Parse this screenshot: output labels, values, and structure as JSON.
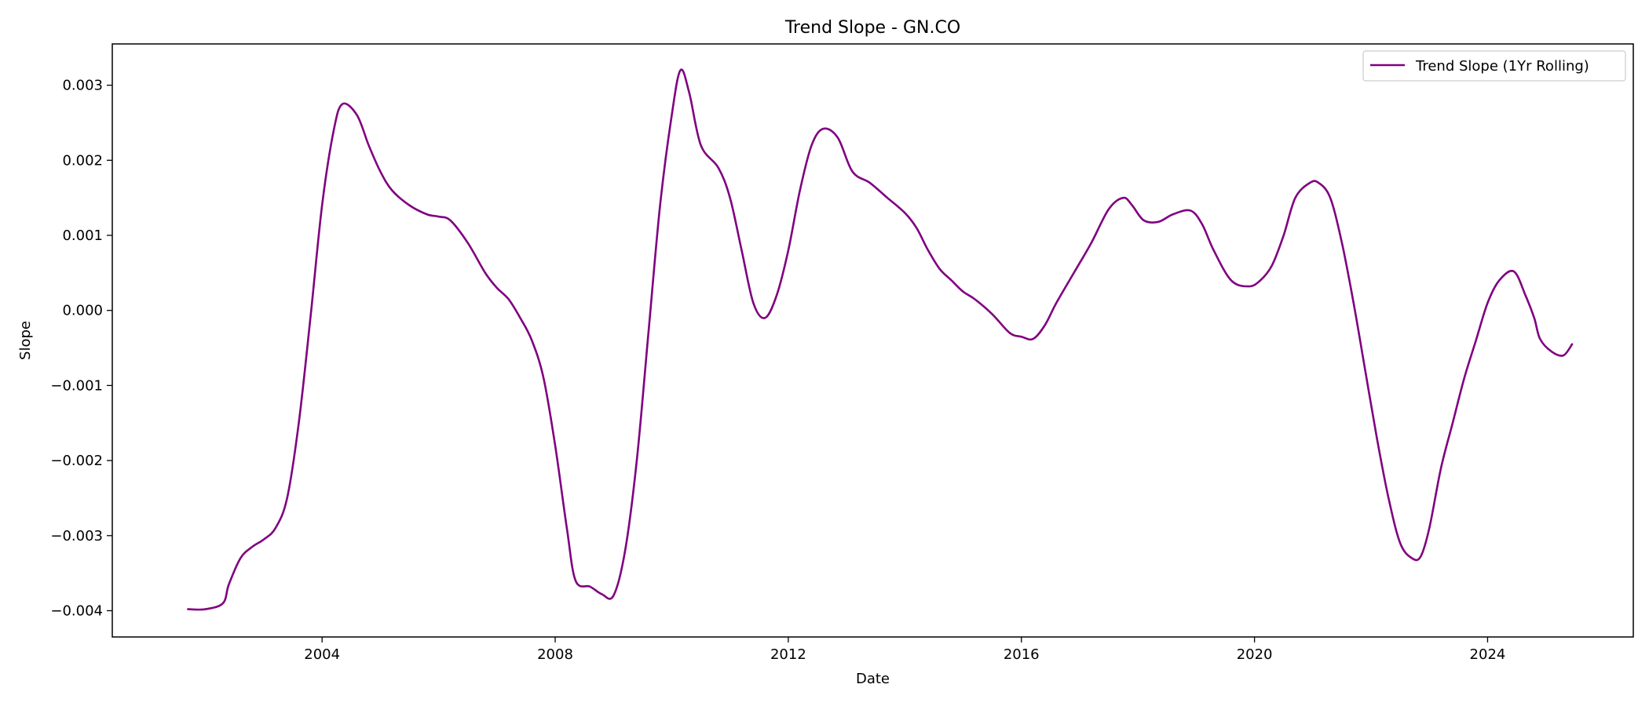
{
  "chart_data": {
    "type": "line",
    "title": "Trend Slope - GN.CO",
    "xlabel": "Date",
    "ylabel": "Slope",
    "xlim": [
      2000.4,
      2026.5
    ],
    "ylim": [
      -0.00435,
      0.00355
    ],
    "x_ticks": [
      {
        "value": 2004,
        "label": "2004"
      },
      {
        "value": 2008,
        "label": "2008"
      },
      {
        "value": 2012,
        "label": "2012"
      },
      {
        "value": 2016,
        "label": "2016"
      },
      {
        "value": 2020,
        "label": "2020"
      },
      {
        "value": 2024,
        "label": "2024"
      }
    ],
    "y_ticks": [
      {
        "value": 0.003,
        "label": "0.003"
      },
      {
        "value": 0.002,
        "label": "0.002"
      },
      {
        "value": 0.001,
        "label": "0.001"
      },
      {
        "value": 0.0,
        "label": "0.000"
      },
      {
        "value": -0.001,
        "label": "−0.001"
      },
      {
        "value": -0.002,
        "label": "−0.002"
      },
      {
        "value": -0.003,
        "label": "−0.003"
      },
      {
        "value": -0.004,
        "label": "−0.004"
      }
    ],
    "grid": false,
    "legend_position": "top-right",
    "series": [
      {
        "name": "Trend Slope (1Yr Rolling)",
        "color": "#800080",
        "x": [
          2001.7,
          2002.0,
          2002.3,
          2002.4,
          2002.6,
          2002.8,
          2003.0,
          2003.2,
          2003.4,
          2003.6,
          2003.8,
          2004.0,
          2004.2,
          2004.35,
          2004.6,
          2004.8,
          2005.0,
          2005.2,
          2005.5,
          2005.8,
          2006.0,
          2006.2,
          2006.5,
          2006.8,
          2007.0,
          2007.2,
          2007.4,
          2007.6,
          2007.8,
          2008.0,
          2008.2,
          2008.35,
          2008.6,
          2008.8,
          2009.0,
          2009.2,
          2009.4,
          2009.6,
          2009.8,
          2010.0,
          2010.15,
          2010.3,
          2010.5,
          2010.8,
          2011.0,
          2011.2,
          2011.4,
          2011.6,
          2011.8,
          2012.0,
          2012.2,
          2012.4,
          2012.6,
          2012.85,
          2013.1,
          2013.4,
          2013.7,
          2014.0,
          2014.2,
          2014.4,
          2014.6,
          2014.8,
          2015.0,
          2015.2,
          2015.5,
          2015.8,
          2016.0,
          2016.2,
          2016.4,
          2016.6,
          2016.9,
          2017.2,
          2017.5,
          2017.75,
          2017.9,
          2018.1,
          2018.35,
          2018.6,
          2018.9,
          2019.1,
          2019.3,
          2019.6,
          2019.9,
          2020.1,
          2020.3,
          2020.5,
          2020.7,
          2020.95,
          2021.1,
          2021.3,
          2021.5,
          2021.7,
          2021.9,
          2022.1,
          2022.3,
          2022.5,
          2022.7,
          2022.85,
          2023.0,
          2023.2,
          2023.4,
          2023.6,
          2023.8,
          2024.0,
          2024.2,
          2024.45,
          2024.65,
          2024.8,
          2024.9,
          2025.1,
          2025.3,
          2025.45
        ],
        "y": [
          -0.00398,
          -0.00398,
          -0.0039,
          -0.00365,
          -0.0033,
          -0.00315,
          -0.00305,
          -0.0029,
          -0.0025,
          -0.0015,
          -0.0001,
          0.0014,
          0.0024,
          0.00275,
          0.0026,
          0.0022,
          0.00185,
          0.0016,
          0.0014,
          0.00128,
          0.00125,
          0.0012,
          0.0009,
          0.0005,
          0.0003,
          0.00015,
          -0.0001,
          -0.0004,
          -0.0009,
          -0.0018,
          -0.0029,
          -0.0036,
          -0.00368,
          -0.00378,
          -0.0038,
          -0.0032,
          -0.002,
          -0.0003,
          0.0014,
          0.0026,
          0.0032,
          0.0029,
          0.0022,
          0.0019,
          0.0015,
          0.0008,
          0.0001,
          -0.0001,
          0.0002,
          0.0008,
          0.0016,
          0.0022,
          0.00242,
          0.0023,
          0.00185,
          0.0017,
          0.0015,
          0.0013,
          0.0011,
          0.0008,
          0.00055,
          0.0004,
          0.00025,
          0.00015,
          -5e-05,
          -0.0003,
          -0.00035,
          -0.00038,
          -0.0002,
          0.0001,
          0.0005,
          0.0009,
          0.00135,
          0.0015,
          0.0014,
          0.0012,
          0.00118,
          0.00128,
          0.00133,
          0.00115,
          0.0008,
          0.0004,
          0.00032,
          0.0004,
          0.0006,
          0.001,
          0.0015,
          0.0017,
          0.0017,
          0.0015,
          0.0009,
          0.0001,
          -0.0008,
          -0.0017,
          -0.0025,
          -0.0031,
          -0.0033,
          -0.00328,
          -0.0029,
          -0.0021,
          -0.0015,
          -0.0009,
          -0.0004,
          0.0001,
          0.0004,
          0.00052,
          0.0002,
          -0.0001,
          -0.00038,
          -0.00055,
          -0.0006,
          -0.00045
        ]
      }
    ]
  }
}
